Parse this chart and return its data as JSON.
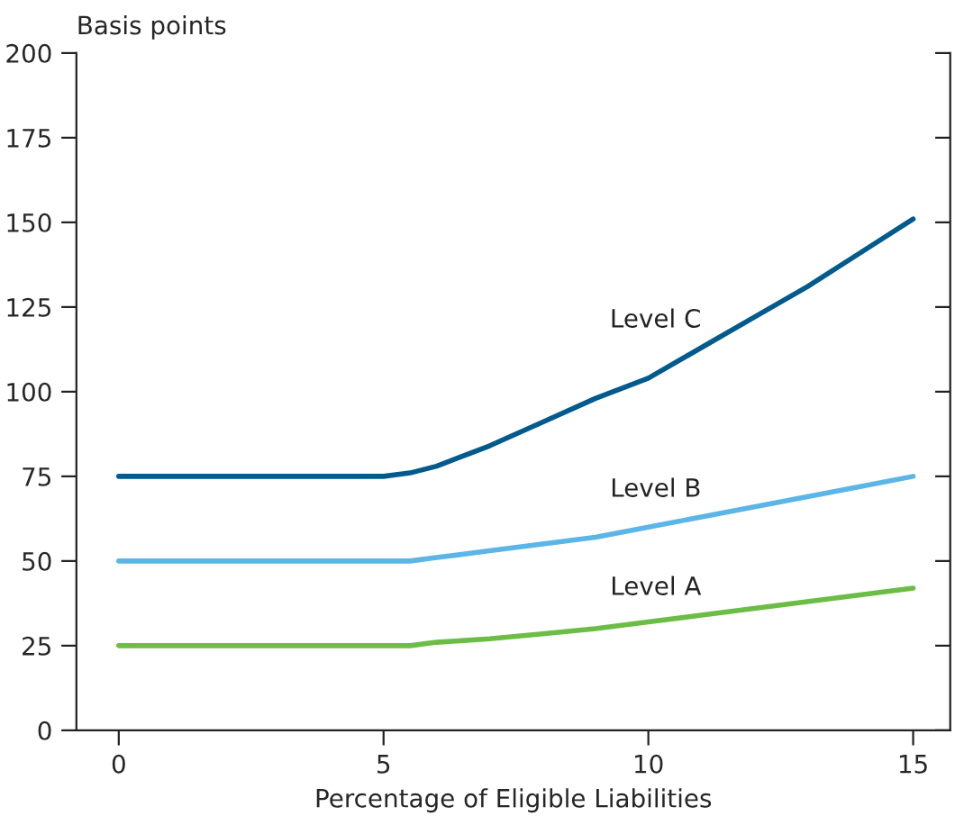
{
  "chart_data": {
    "type": "line",
    "ylabel": "Basis points",
    "xlabel": "Percentage of Eligible Liabilities",
    "x": [
      0,
      1,
      2,
      3,
      4,
      5,
      5.5,
      6,
      7,
      8,
      9,
      10,
      11,
      12,
      13,
      14,
      15
    ],
    "series": [
      {
        "name": "Level C",
        "color": "#005a8c",
        "values": [
          75,
          75,
          75,
          75,
          75,
          75,
          76,
          78,
          84,
          91,
          98,
          104,
          113,
          122,
          131,
          141,
          151
        ]
      },
      {
        "name": "Level B",
        "color": "#5bb5e6",
        "values": [
          50,
          50,
          50,
          50,
          50,
          50,
          50,
          51,
          53,
          55,
          57,
          60,
          63,
          66,
          69,
          72,
          75
        ]
      },
      {
        "name": "Level A",
        "color": "#6cbd45",
        "values": [
          25,
          25,
          25,
          25,
          25,
          25,
          25,
          26,
          27,
          28.5,
          30,
          32,
          34,
          36,
          38,
          40,
          42
        ]
      }
    ],
    "xlim": [
      -0.8,
      15.7
    ],
    "ylim": [
      0,
      200
    ],
    "xticks": [
      0,
      5,
      10,
      15
    ],
    "yticks": [
      0,
      25,
      50,
      75,
      100,
      125,
      150,
      175,
      200
    ],
    "grid": false,
    "legend": false,
    "marker": "none",
    "line_style": "solid"
  }
}
